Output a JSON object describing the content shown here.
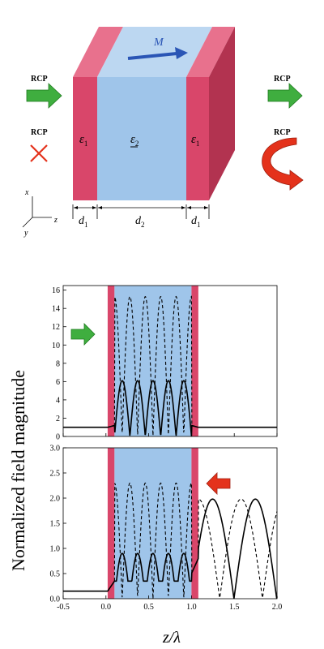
{
  "diagram": {
    "labels": {
      "magnetization": "M",
      "rcp_in_top": "RCP",
      "rcp_in_bottom": "RCP",
      "rcp_out_top": "RCP",
      "rcp_out_bottom": "RCP",
      "eps_left": "ε",
      "eps_left_sub": "1",
      "eps_mid": "ε",
      "eps_mid_sub": "2",
      "eps_right": "ε",
      "eps_right_sub": "1",
      "d_left": "d",
      "d_left_sub": "1",
      "d_mid": "d",
      "d_mid_sub": "2",
      "d_right": "d",
      "d_right_sub": "1",
      "axis_x": "x",
      "axis_y": "y",
      "axis_z": "z"
    },
    "colors": {
      "slab_pink": "#d9466a",
      "slab_pink_top": "#e8718d",
      "slab_pink_side": "#b23350",
      "slab_blue": "#9fc5ea",
      "slab_blue_top": "#bcd7f1",
      "arrow_green": "#3fae3f",
      "arrow_red": "#e4321b",
      "m_arrow": "#2a55b5"
    }
  },
  "chart_data": [
    {
      "type": "line",
      "panel": "top",
      "ylabel": "Normalized field magnitude",
      "xlim": [
        -0.5,
        2.0
      ],
      "ylim": [
        0,
        16.5
      ],
      "yticks": [
        "0",
        "2",
        "4",
        "6",
        "8",
        "10",
        "12",
        "14",
        "16"
      ],
      "ytick_values": [
        0,
        2,
        4,
        6,
        8,
        10,
        12,
        14,
        16
      ],
      "layers": [
        {
          "material": "eps1",
          "from": 0.02,
          "to": 0.1
        },
        {
          "material": "eps2",
          "from": 0.1,
          "to": 1.0
        },
        {
          "material": "eps1",
          "from": 1.0,
          "to": 1.08
        }
      ],
      "series": [
        {
          "style": "solid",
          "outside_level": 1.0,
          "peak": 6.1,
          "lobes": 5
        },
        {
          "style": "dashed",
          "outside_level": 1.0,
          "peak": 15.3,
          "lobes": 5
        }
      ],
      "incident_arrow": "right"
    },
    {
      "type": "line",
      "panel": "bottom",
      "xlabel": "z/λ",
      "xlim": [
        -0.5,
        2.0
      ],
      "ylim": [
        0,
        3.0
      ],
      "xticks": [
        "-0.5",
        "0.0",
        "0.5",
        "1.0",
        "1.5",
        "2.0"
      ],
      "xtick_values": [
        -0.5,
        0.0,
        0.5,
        1.0,
        1.5,
        2.0
      ],
      "yticks": [
        "0.0",
        "0.5",
        "1.0",
        "1.5",
        "2.0",
        "2.5",
        "3.0"
      ],
      "ytick_values": [
        0.0,
        0.5,
        1.0,
        1.5,
        2.0,
        2.5,
        3.0
      ],
      "layers": [
        {
          "material": "eps1",
          "from": 0.02,
          "to": 0.1
        },
        {
          "material": "eps2",
          "from": 0.1,
          "to": 1.0
        },
        {
          "material": "eps1",
          "from": 1.0,
          "to": 1.08
        }
      ],
      "series": [
        {
          "style": "solid",
          "left_level": 0.15,
          "inside_peak": 0.9,
          "lobes": 5,
          "right_peak": 1.98
        },
        {
          "style": "dashed",
          "left_level": 0.15,
          "inside_peak": 2.3,
          "lobes": 5,
          "right_peak": 1.98
        }
      ],
      "incident_arrow": "left"
    }
  ]
}
